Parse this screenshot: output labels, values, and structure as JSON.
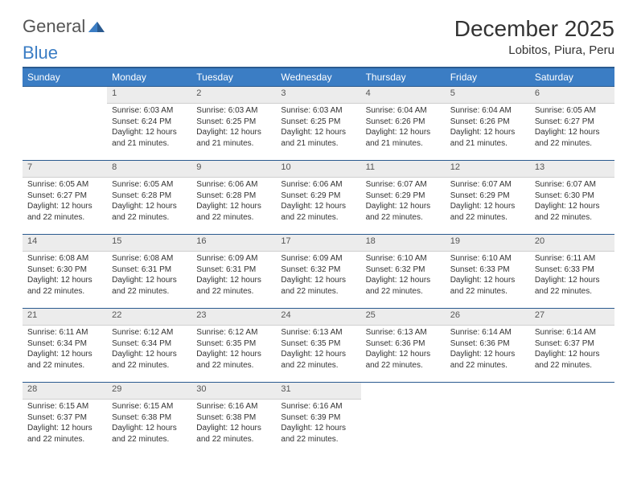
{
  "brand": {
    "part1": "General",
    "part2": "Blue"
  },
  "title": "December 2025",
  "location": "Lobitos, Piura, Peru",
  "colors": {
    "header_bg": "#3b7dc4",
    "header_border": "#2a5a8f",
    "daynum_bg": "#ececec",
    "text": "#333333"
  },
  "day_headers": [
    "Sunday",
    "Monday",
    "Tuesday",
    "Wednesday",
    "Thursday",
    "Friday",
    "Saturday"
  ],
  "weeks": [
    [
      null,
      {
        "n": "1",
        "sr": "6:03 AM",
        "ss": "6:24 PM",
        "dl": "12 hours and 21 minutes."
      },
      {
        "n": "2",
        "sr": "6:03 AM",
        "ss": "6:25 PM",
        "dl": "12 hours and 21 minutes."
      },
      {
        "n": "3",
        "sr": "6:03 AM",
        "ss": "6:25 PM",
        "dl": "12 hours and 21 minutes."
      },
      {
        "n": "4",
        "sr": "6:04 AM",
        "ss": "6:26 PM",
        "dl": "12 hours and 21 minutes."
      },
      {
        "n": "5",
        "sr": "6:04 AM",
        "ss": "6:26 PM",
        "dl": "12 hours and 21 minutes."
      },
      {
        "n": "6",
        "sr": "6:05 AM",
        "ss": "6:27 PM",
        "dl": "12 hours and 22 minutes."
      }
    ],
    [
      {
        "n": "7",
        "sr": "6:05 AM",
        "ss": "6:27 PM",
        "dl": "12 hours and 22 minutes."
      },
      {
        "n": "8",
        "sr": "6:05 AM",
        "ss": "6:28 PM",
        "dl": "12 hours and 22 minutes."
      },
      {
        "n": "9",
        "sr": "6:06 AM",
        "ss": "6:28 PM",
        "dl": "12 hours and 22 minutes."
      },
      {
        "n": "10",
        "sr": "6:06 AM",
        "ss": "6:29 PM",
        "dl": "12 hours and 22 minutes."
      },
      {
        "n": "11",
        "sr": "6:07 AM",
        "ss": "6:29 PM",
        "dl": "12 hours and 22 minutes."
      },
      {
        "n": "12",
        "sr": "6:07 AM",
        "ss": "6:29 PM",
        "dl": "12 hours and 22 minutes."
      },
      {
        "n": "13",
        "sr": "6:07 AM",
        "ss": "6:30 PM",
        "dl": "12 hours and 22 minutes."
      }
    ],
    [
      {
        "n": "14",
        "sr": "6:08 AM",
        "ss": "6:30 PM",
        "dl": "12 hours and 22 minutes."
      },
      {
        "n": "15",
        "sr": "6:08 AM",
        "ss": "6:31 PM",
        "dl": "12 hours and 22 minutes."
      },
      {
        "n": "16",
        "sr": "6:09 AM",
        "ss": "6:31 PM",
        "dl": "12 hours and 22 minutes."
      },
      {
        "n": "17",
        "sr": "6:09 AM",
        "ss": "6:32 PM",
        "dl": "12 hours and 22 minutes."
      },
      {
        "n": "18",
        "sr": "6:10 AM",
        "ss": "6:32 PM",
        "dl": "12 hours and 22 minutes."
      },
      {
        "n": "19",
        "sr": "6:10 AM",
        "ss": "6:33 PM",
        "dl": "12 hours and 22 minutes."
      },
      {
        "n": "20",
        "sr": "6:11 AM",
        "ss": "6:33 PM",
        "dl": "12 hours and 22 minutes."
      }
    ],
    [
      {
        "n": "21",
        "sr": "6:11 AM",
        "ss": "6:34 PM",
        "dl": "12 hours and 22 minutes."
      },
      {
        "n": "22",
        "sr": "6:12 AM",
        "ss": "6:34 PM",
        "dl": "12 hours and 22 minutes."
      },
      {
        "n": "23",
        "sr": "6:12 AM",
        "ss": "6:35 PM",
        "dl": "12 hours and 22 minutes."
      },
      {
        "n": "24",
        "sr": "6:13 AM",
        "ss": "6:35 PM",
        "dl": "12 hours and 22 minutes."
      },
      {
        "n": "25",
        "sr": "6:13 AM",
        "ss": "6:36 PM",
        "dl": "12 hours and 22 minutes."
      },
      {
        "n": "26",
        "sr": "6:14 AM",
        "ss": "6:36 PM",
        "dl": "12 hours and 22 minutes."
      },
      {
        "n": "27",
        "sr": "6:14 AM",
        "ss": "6:37 PM",
        "dl": "12 hours and 22 minutes."
      }
    ],
    [
      {
        "n": "28",
        "sr": "6:15 AM",
        "ss": "6:37 PM",
        "dl": "12 hours and 22 minutes."
      },
      {
        "n": "29",
        "sr": "6:15 AM",
        "ss": "6:38 PM",
        "dl": "12 hours and 22 minutes."
      },
      {
        "n": "30",
        "sr": "6:16 AM",
        "ss": "6:38 PM",
        "dl": "12 hours and 22 minutes."
      },
      {
        "n": "31",
        "sr": "6:16 AM",
        "ss": "6:39 PM",
        "dl": "12 hours and 22 minutes."
      },
      null,
      null,
      null
    ]
  ],
  "labels": {
    "sunrise": "Sunrise: ",
    "sunset": "Sunset: ",
    "daylight": "Daylight: "
  }
}
